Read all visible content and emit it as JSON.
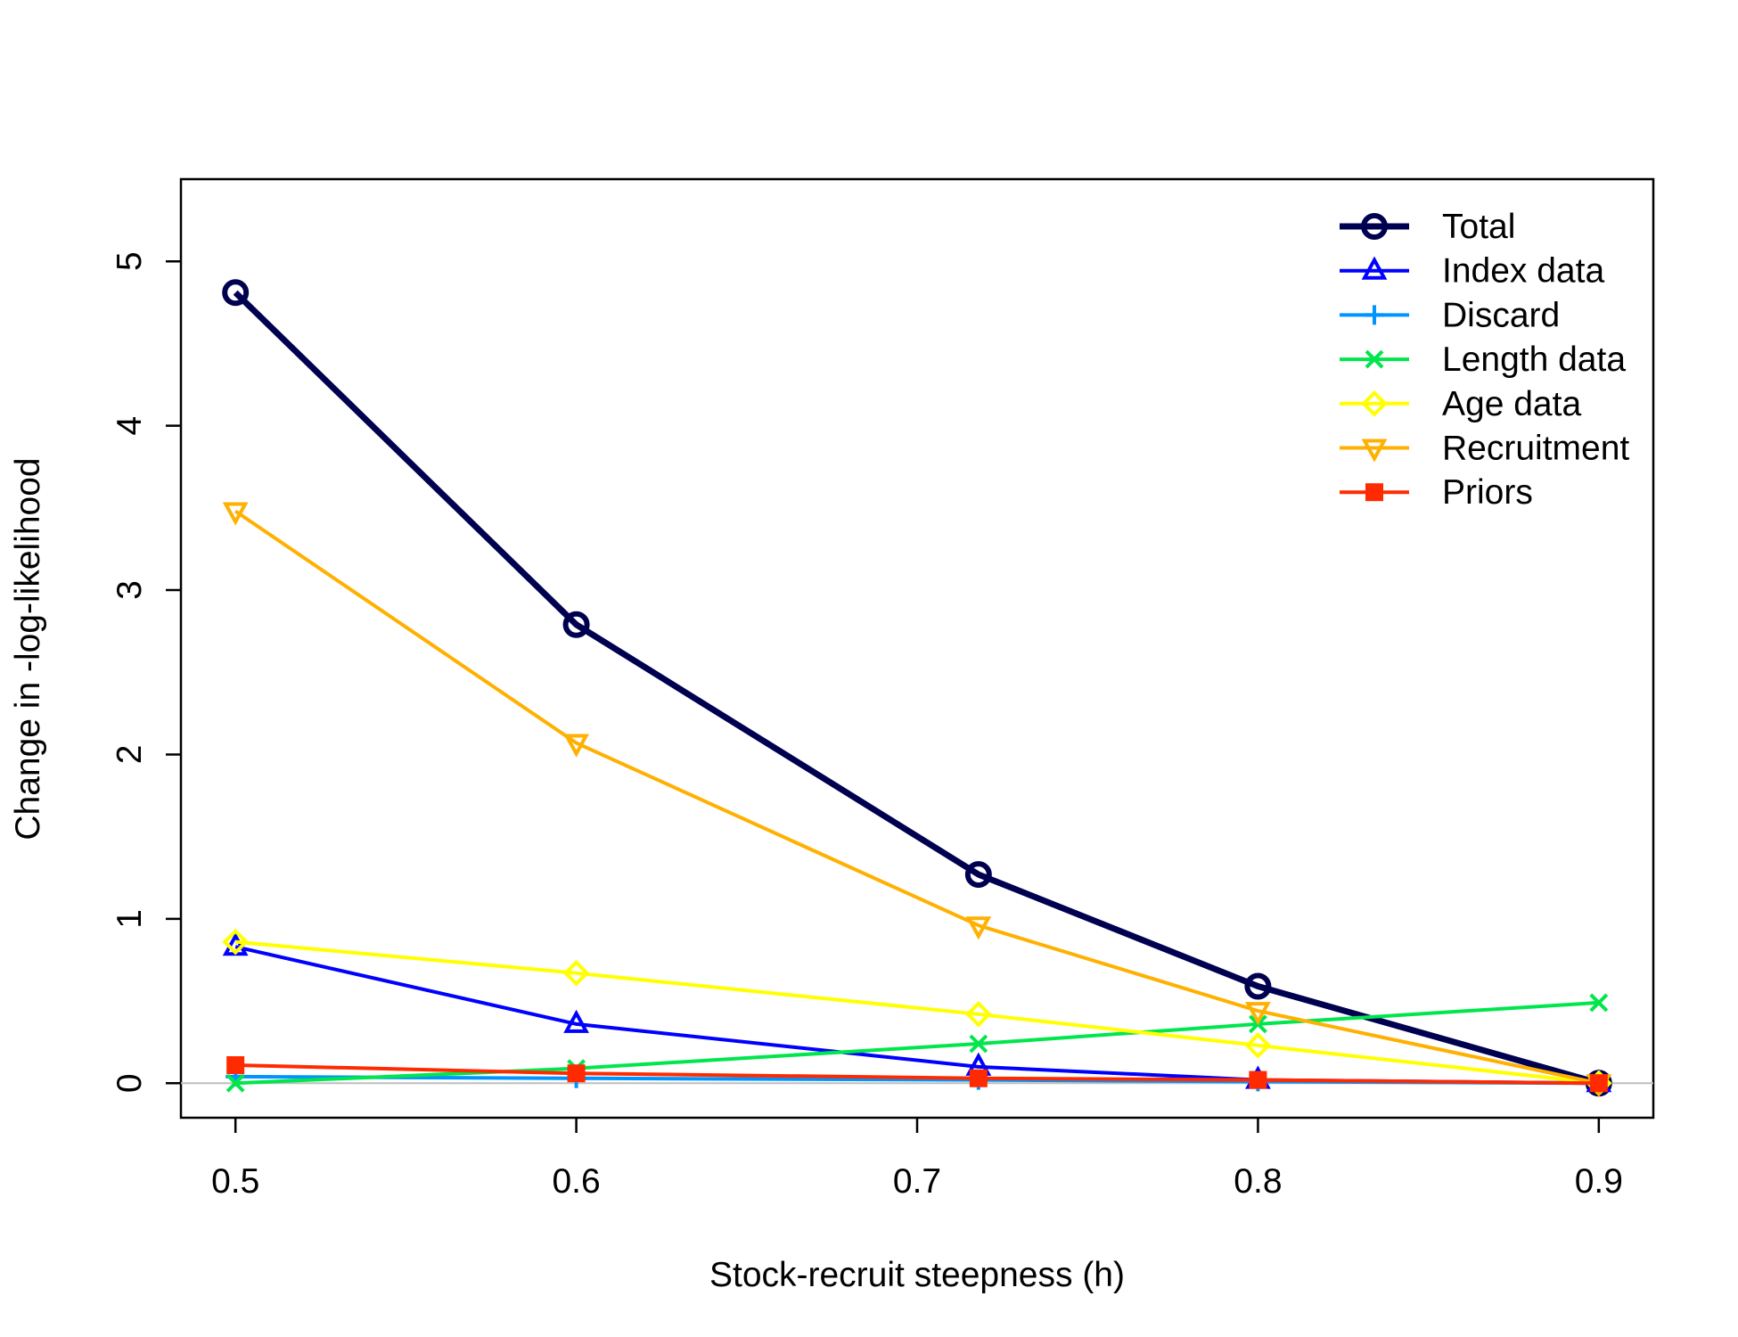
{
  "chart_data": {
    "type": "line",
    "title": "",
    "xlabel": "Stock-recruit steepness (h)",
    "ylabel": "Change in -log-likelihood",
    "xlim": [
      0.484,
      0.916
    ],
    "ylim": [
      -0.21,
      5.5
    ],
    "xticks": [
      0.5,
      0.6,
      0.7,
      0.8,
      0.9
    ],
    "xtick_labels": [
      "0.5",
      "0.6",
      "0.7",
      "0.8",
      "0.9"
    ],
    "yticks": [
      0,
      1,
      2,
      3,
      4,
      5
    ],
    "ytick_labels": [
      "0",
      "1",
      "2",
      "3",
      "4",
      "5"
    ],
    "x": [
      0.5,
      0.6,
      0.718,
      0.8,
      0.9
    ],
    "reference_line_y": 0,
    "reference_line_color": "#BEBEBE",
    "grid": false,
    "legend_position": "top-right",
    "series": [
      {
        "name": "Total",
        "color": "#000050",
        "marker": "circle",
        "line_width": 7,
        "values": [
          4.81,
          2.79,
          1.27,
          0.59,
          0.0
        ]
      },
      {
        "name": "Index data",
        "color": "#0000FF",
        "marker": "triangle-up",
        "line_width": 4,
        "values": [
          0.83,
          0.36,
          0.1,
          0.02,
          0.0
        ]
      },
      {
        "name": "Discard",
        "color": "#0094FF",
        "marker": "plus",
        "line_width": 4,
        "values": [
          0.04,
          0.03,
          0.02,
          0.01,
          0.0
        ]
      },
      {
        "name": "Length data",
        "color": "#00E64C",
        "marker": "cross",
        "line_width": 4,
        "values": [
          0.0,
          0.09,
          0.24,
          0.36,
          0.49
        ]
      },
      {
        "name": "Age data",
        "color": "#FFFF00",
        "marker": "diamond",
        "line_width": 4,
        "values": [
          0.86,
          0.67,
          0.42,
          0.23,
          0.0
        ]
      },
      {
        "name": "Recruitment",
        "color": "#FFB000",
        "marker": "triangle-down",
        "line_width": 4,
        "values": [
          3.48,
          2.07,
          0.96,
          0.44,
          0.0
        ]
      },
      {
        "name": "Priors",
        "color": "#FF2A00",
        "marker": "square",
        "line_width": 4,
        "values": [
          0.11,
          0.06,
          0.03,
          0.02,
          0.0
        ]
      }
    ]
  }
}
